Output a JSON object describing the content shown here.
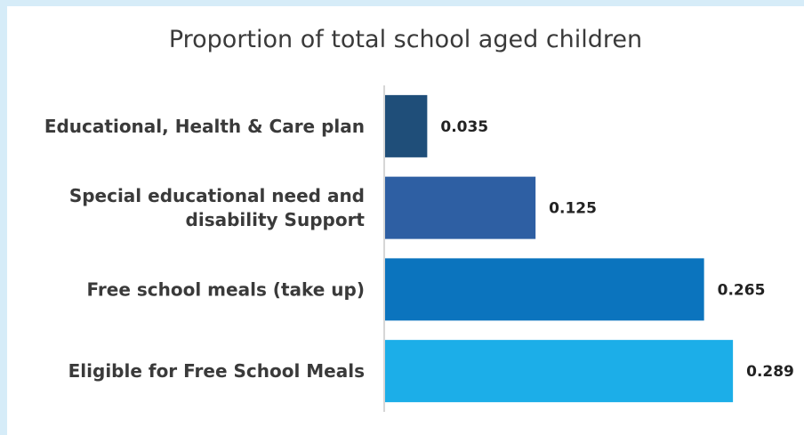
{
  "chart_data": {
    "type": "bar",
    "orientation": "horizontal",
    "title": "Proportion of total school aged children",
    "xlabel": "",
    "ylabel": "",
    "grid": false,
    "legend": "none",
    "xlim": [
      0,
      0.3
    ],
    "categories": [
      [
        "Educational, Health & Care plan"
      ],
      [
        "Special educational need and",
        "disability Support"
      ],
      [
        "Free school meals (take up)"
      ],
      [
        "Eligible for Free School Meals"
      ]
    ],
    "values": [
      0.035,
      0.125,
      0.265,
      0.289
    ],
    "value_labels": [
      "0.035",
      "0.125",
      "0.265",
      "0.289"
    ],
    "colors": [
      "#1f4e79",
      "#2e5fa3",
      "#0b74be",
      "#1caee8"
    ]
  }
}
